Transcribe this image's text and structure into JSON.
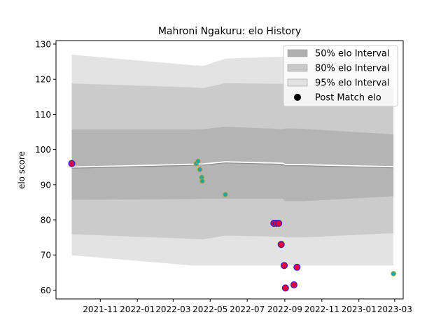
{
  "chart_data": {
    "type": "line",
    "title": "Mahroni Ngakuru: elo History",
    "xlabel": "",
    "ylabel": "elo score",
    "xlim": [
      "2021-08-20",
      "2023-03-15"
    ],
    "ylim": [
      57.5,
      131
    ],
    "x_ticks": [
      "2021-11",
      "2022-01",
      "2022-03",
      "2022-05",
      "2022-07",
      "2022-09",
      "2022-11",
      "2023-01",
      "2023-03"
    ],
    "y_ticks": [
      60,
      70,
      80,
      90,
      100,
      110,
      120,
      130
    ],
    "grid": false,
    "legend_position": "upper right",
    "legend": [
      {
        "label": "50% elo Interval",
        "kind": "band",
        "color": "#b0b0b0"
      },
      {
        "label": "80% elo Interval",
        "kind": "band",
        "color": "#c8c8c8"
      },
      {
        "label": "95% elo Interval",
        "kind": "band",
        "color": "#e2e2e2"
      },
      {
        "label": "Post Match elo",
        "kind": "marker",
        "color": "#000000"
      }
    ],
    "colors": {
      "band50": "#b4b4b4",
      "band80": "#cbcbcb",
      "band95": "#e3e3e3",
      "mean_line": "#8a8a8a",
      "loss_marker_fill": "#e8003c",
      "loss_marker_edge": "#3a1fd1",
      "win_marker_fill": "#1aa7a7",
      "win_marker_edge": "#b8a33a"
    },
    "intervals": [
      {
        "date": "2021-09-15",
        "mean": 94.7,
        "lo50": 85.7,
        "hi50": 105.7,
        "lo80": 75.9,
        "hi80": 118.8,
        "lo95": 69.9,
        "hi95": 127.0
      },
      {
        "date": "2022-04-01",
        "mean": 95.5,
        "lo50": 85.9,
        "hi50": 105.7,
        "lo80": 74.6,
        "hi80": 117.7,
        "lo95": 67.0,
        "hi95": 124.0
      },
      {
        "date": "2022-04-20",
        "mean": 95.6,
        "lo50": 86.0,
        "hi50": 105.8,
        "lo80": 74.5,
        "hi80": 117.5,
        "lo95": 67.0,
        "hi95": 123.8
      },
      {
        "date": "2022-05-26",
        "mean": 96.2,
        "lo50": 86.0,
        "hi50": 106.5,
        "lo80": 75.5,
        "hi80": 118.9,
        "lo95": 67.0,
        "hi95": 125.9
      },
      {
        "date": "2022-08-28",
        "mean": 95.8,
        "lo50": 86.0,
        "hi50": 105.8,
        "lo80": 75.2,
        "hi80": 118.7,
        "lo95": 67.0,
        "hi95": 126.4
      },
      {
        "date": "2022-09-02",
        "mean": 95.4,
        "lo50": 85.3,
        "hi50": 106.0,
        "lo80": 75.0,
        "hi80": 118.4,
        "lo95": 67.0,
        "hi95": 126.3
      },
      {
        "date": "2022-10-01",
        "mean": 95.4,
        "lo50": 85.3,
        "hi50": 105.9,
        "lo80": 75.0,
        "hi80": 118.3,
        "lo95": 67.0,
        "hi95": 126.3
      },
      {
        "date": "2023-02-27",
        "mean": 94.8,
        "lo50": 86.7,
        "hi50": 104.3,
        "lo80": 76.2,
        "hi80": 117.5,
        "lo95": 67.0,
        "hi95": 126.3
      }
    ],
    "points": [
      {
        "date": "2021-09-15",
        "elo": 96.0,
        "result": "loss"
      },
      {
        "date": "2022-04-08",
        "elo": 96.0,
        "result": "win"
      },
      {
        "date": "2022-04-11",
        "elo": 96.7,
        "result": "win"
      },
      {
        "date": "2022-04-14",
        "elo": 94.3,
        "result": "win"
      },
      {
        "date": "2022-04-17",
        "elo": 92.1,
        "result": "win"
      },
      {
        "date": "2022-04-18",
        "elo": 91.0,
        "result": "win"
      },
      {
        "date": "2022-05-26",
        "elo": 87.2,
        "result": "win"
      },
      {
        "date": "2022-08-14",
        "elo": 79.0,
        "result": "loss"
      },
      {
        "date": "2022-08-18",
        "elo": 79.0,
        "result": "loss"
      },
      {
        "date": "2022-08-22",
        "elo": 79.0,
        "result": "loss"
      },
      {
        "date": "2022-08-26",
        "elo": 73.0,
        "result": "loss"
      },
      {
        "date": "2022-08-31",
        "elo": 67.0,
        "result": "loss"
      },
      {
        "date": "2022-09-02",
        "elo": 60.6,
        "result": "loss"
      },
      {
        "date": "2022-09-16",
        "elo": 61.5,
        "result": "loss"
      },
      {
        "date": "2022-09-21",
        "elo": 66.5,
        "result": "loss"
      },
      {
        "date": "2023-02-27",
        "elo": 64.7,
        "result": "win"
      }
    ]
  }
}
